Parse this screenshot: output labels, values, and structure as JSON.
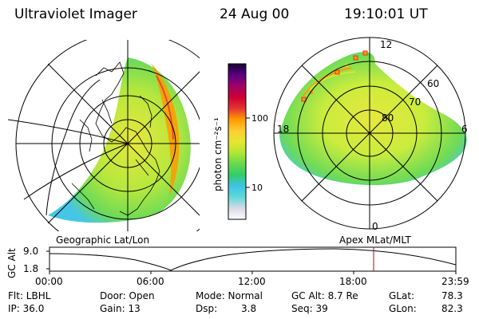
{
  "header": {
    "title": "Ultraviolet Imager",
    "date": "24 Aug 00",
    "time": "19:10:01 UT"
  },
  "colorbar": {
    "unit_label": "photon cm⁻²s⁻¹",
    "ticks": [
      "100",
      "10"
    ],
    "colors": [
      "#ffffff",
      "#d9d9e6",
      "#5fd9d9",
      "#3cc3e6",
      "#33cc66",
      "#66d94d",
      "#b3e633",
      "#e6e633",
      "#ffcc33",
      "#ff9900",
      "#e63333",
      "#cc0033",
      "#a00066",
      "#5a0080",
      "#140033"
    ]
  },
  "polar_labels": {
    "top": "12",
    "bottom": "0",
    "left": "18",
    "right": "6",
    "lat80": "80",
    "lat70": "70",
    "lat60": "60"
  },
  "panel_labels": {
    "left": "Geographic Lat/Lon",
    "right": "Apex MLat/MLT"
  },
  "altitude_plot": {
    "axis_title": "GC Alt",
    "y_ticks": [
      "9.0",
      "1.8"
    ],
    "x_ticks": [
      "00:00",
      "06:00",
      "12:00",
      "18:00",
      "23:59"
    ],
    "current_time_marker": "19:10",
    "marker_color": "#cc0000"
  },
  "status": {
    "filter": "Flt: LBHL",
    "ip": "IP: 36.0",
    "door": "Door: Open",
    "gain": "Gain: 13",
    "mode": "Mode: Normal",
    "dsp": "Dsp:",
    "dsp_val": "3.8",
    "gcalt": "GC Alt: 8.7 Re",
    "seq": "Seq: 39",
    "glat": "GLat:",
    "glat_val": "78.3",
    "glon": "GLon:",
    "glon_val": "82.3"
  }
}
